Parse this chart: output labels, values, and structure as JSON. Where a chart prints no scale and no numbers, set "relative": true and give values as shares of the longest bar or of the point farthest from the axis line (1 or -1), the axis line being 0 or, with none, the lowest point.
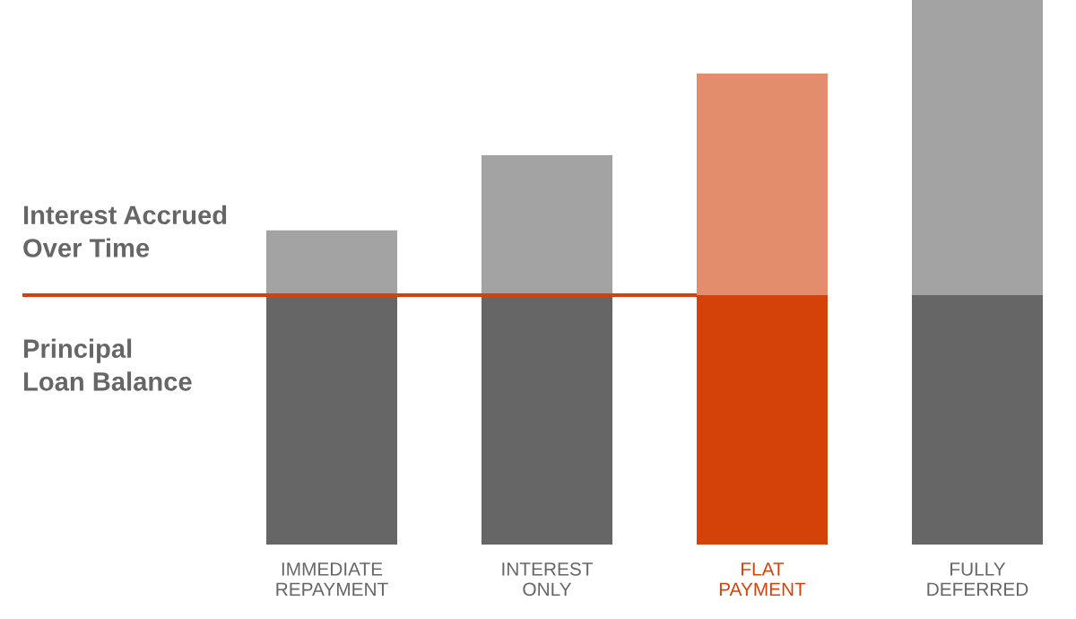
{
  "chart_data": {
    "type": "bar",
    "stacked": true,
    "relative": true,
    "legend": false,
    "grid": false,
    "categories": [
      "IMMEDIATE\nREPAYMENT",
      "INTEREST\nONLY",
      "FLAT\nPAYMENT",
      "FULLY\nDEFERRED"
    ],
    "series": [
      {
        "name": "Principal\nLoan Balance",
        "color": "#666666",
        "colors": [
          "#666666",
          "#666666",
          "#d4420a",
          "#666666"
        ],
        "values": [
          0.458,
          0.458,
          0.458,
          0.458
        ]
      },
      {
        "name": "Interest Accrued\nOver Time",
        "color": "#a3a3a3",
        "colors": [
          "#a3a3a3",
          "#a3a3a3",
          "#e38d6c",
          "#a3a3a3"
        ],
        "values": [
          0.119,
          0.257,
          0.407,
          0.542
        ]
      }
    ],
    "ref_lines": [
      {
        "axis": "y",
        "value": 0.458,
        "color": "#d4420a",
        "line_style": "solid"
      }
    ]
  }
}
